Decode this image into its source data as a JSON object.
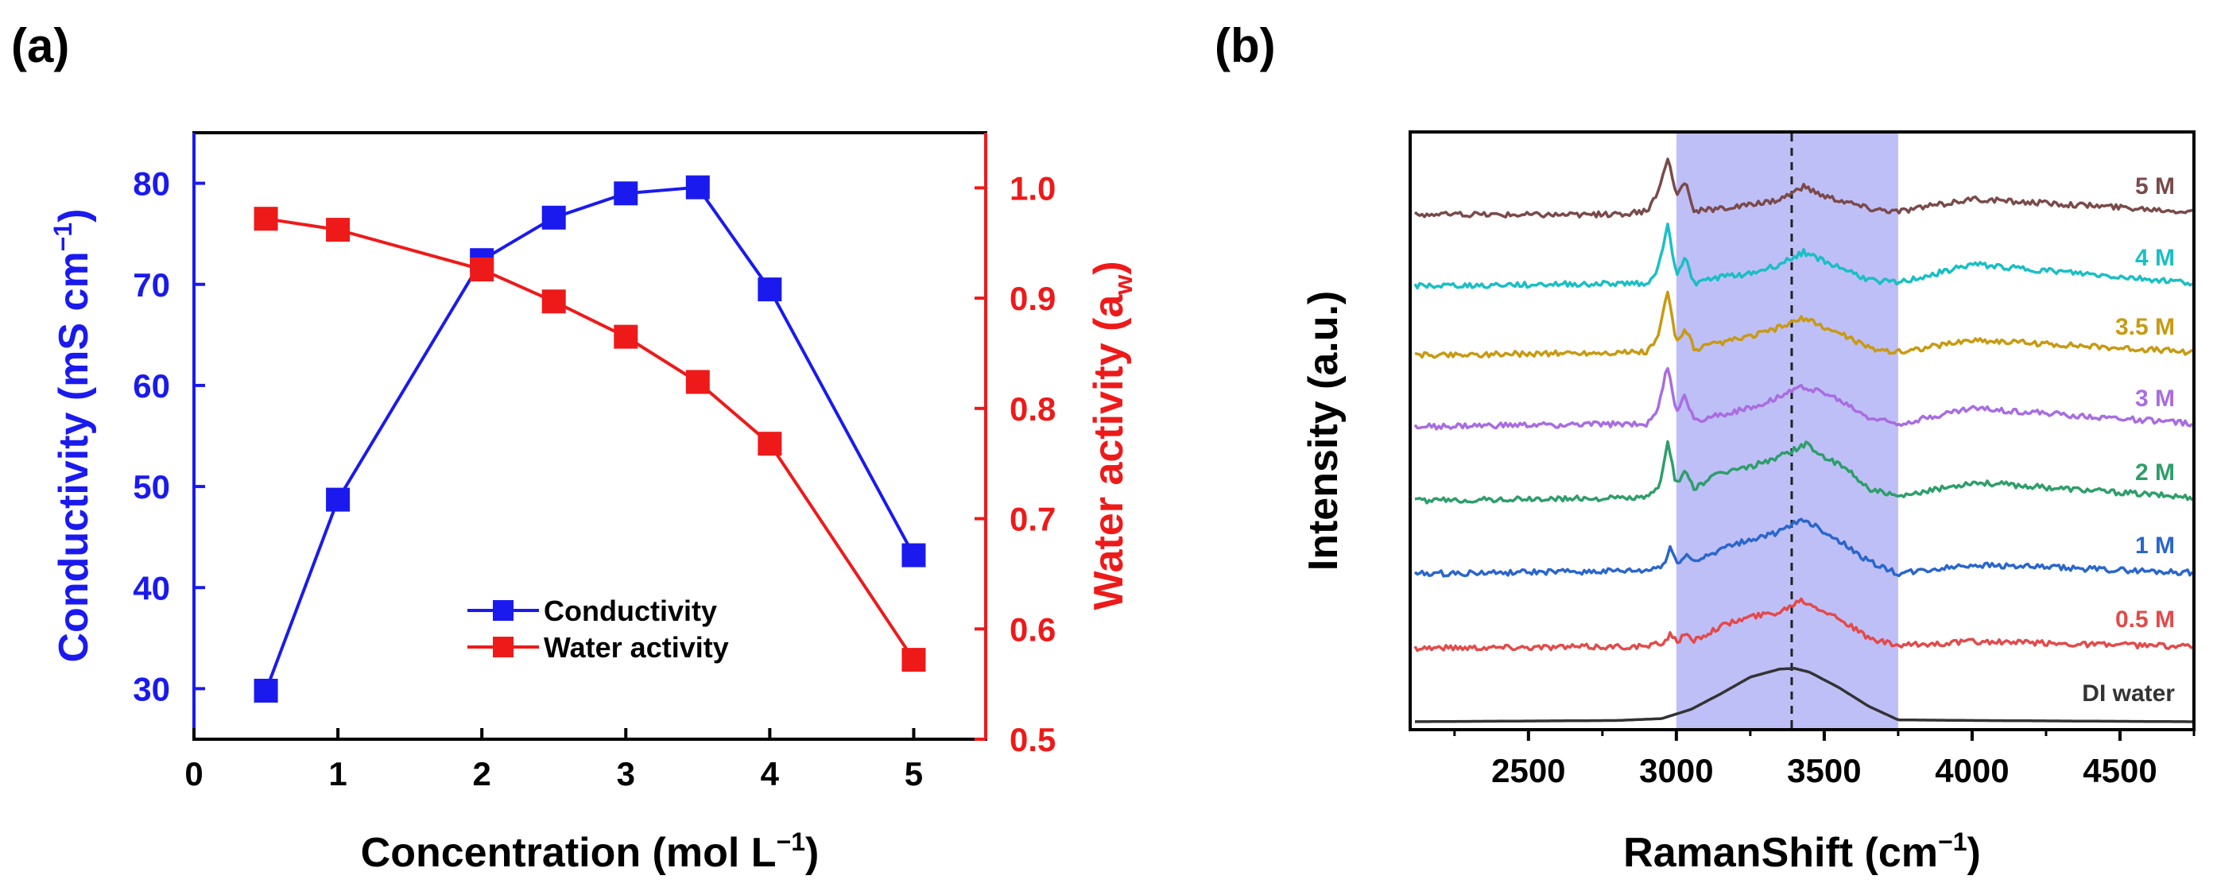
{
  "figure": {
    "panel_a_label": "(a)",
    "panel_b_label": "(b)"
  },
  "chart_data": [
    {
      "id": "a",
      "type": "line",
      "panel_label": "(a)",
      "xlabel": "Concentration (mol L",
      "xlabel_sup": "−1",
      "xlabel_end": ")",
      "ylabel_left": "Conductivity (mS cm",
      "ylabel_left_sup": "−1",
      "ylabel_left_end": ")",
      "ylabel_right": "Water activity (a",
      "ylabel_right_sub": "w",
      "ylabel_right_end": ")",
      "xlim": [
        0,
        5.5
      ],
      "ylim_left": [
        25,
        85
      ],
      "ylim_right": [
        0.5,
        1.05
      ],
      "xticks": [
        0,
        1,
        2,
        3,
        4,
        5
      ],
      "yticks_left": [
        30,
        40,
        50,
        60,
        70,
        80
      ],
      "yticks_right": [
        0.5,
        0.6,
        0.7,
        0.8,
        0.9,
        1.0
      ],
      "yticks_right_labels": [
        "0.5",
        "0.6",
        "0.7",
        "0.8",
        "0.9",
        "1.0"
      ],
      "legend_position": "lower-center",
      "series": [
        {
          "name": "Conductivity",
          "axis": "left",
          "color": "#1a1aee",
          "x": [
            0.5,
            1,
            2,
            2.5,
            3,
            3.5,
            4,
            5
          ],
          "y": [
            29.8,
            48.7,
            72.4,
            76.6,
            79.0,
            79.6,
            69.5,
            43.2
          ]
        },
        {
          "name": "Water activity",
          "axis": "right",
          "color": "#ee1a1a",
          "x": [
            0.5,
            1,
            2,
            2.5,
            3,
            3.5,
            4,
            5
          ],
          "y": [
            0.972,
            0.962,
            0.926,
            0.897,
            0.865,
            0.824,
            0.768,
            0.572
          ]
        }
      ]
    },
    {
      "id": "b",
      "type": "line",
      "panel_label": "(b)",
      "xlabel": "RamanShift (cm",
      "xlabel_sup": "−1",
      "xlabel_end": ")",
      "ylabel": "Intensity (a.u.)",
      "xlim": [
        2100,
        4750
      ],
      "xticks": [
        2500,
        3000,
        3500,
        4000,
        4500
      ],
      "shaded_region": [
        3000,
        3750
      ],
      "shade_color": "#b4b4f7",
      "dashed_line_x": 3390,
      "offset_step": 1,
      "series": [
        {
          "name": "DI water",
          "color": "#333333",
          "x": [
            2100,
            2800,
            2950,
            3050,
            3150,
            3250,
            3350,
            3400,
            3450,
            3550,
            3650,
            3750,
            4000,
            4750
          ],
          "y": [
            0.0,
            0.02,
            0.05,
            0.2,
            0.45,
            0.72,
            0.85,
            0.86,
            0.8,
            0.55,
            0.25,
            0.03,
            0.02,
            0.0
          ]
        },
        {
          "name": "0.5 M",
          "color": "#e34a4a",
          "x": [
            2100,
            2900,
            2960,
            2980,
            3000,
            3030,
            3060,
            3150,
            3250,
            3350,
            3420,
            3480,
            3560,
            3650,
            3750,
            4000,
            4750
          ],
          "y": [
            0.0,
            0.02,
            0.08,
            0.25,
            0.1,
            0.2,
            0.12,
            0.35,
            0.5,
            0.58,
            0.78,
            0.65,
            0.45,
            0.15,
            0.03,
            0.1,
            0.02
          ]
        },
        {
          "name": "1 M",
          "color": "#2a66cc",
          "x": [
            2100,
            2900,
            2960,
            2980,
            3000,
            3030,
            3060,
            3150,
            3250,
            3350,
            3430,
            3480,
            3560,
            3650,
            3750,
            4000,
            4750
          ],
          "y": [
            0.0,
            0.05,
            0.15,
            0.45,
            0.15,
            0.32,
            0.2,
            0.4,
            0.55,
            0.68,
            0.88,
            0.75,
            0.5,
            0.2,
            0.0,
            0.15,
            0.02
          ]
        },
        {
          "name": "2 M",
          "color": "#2e9e6a",
          "x": [
            2100,
            2900,
            2940,
            2970,
            3000,
            3030,
            3060,
            3150,
            3250,
            3350,
            3440,
            3500,
            3580,
            3650,
            3750,
            4000,
            4750
          ],
          "y": [
            0.0,
            0.05,
            0.2,
            0.95,
            0.25,
            0.5,
            0.2,
            0.45,
            0.55,
            0.72,
            0.92,
            0.7,
            0.5,
            0.2,
            0.05,
            0.3,
            0.05
          ]
        },
        {
          "name": "3 M",
          "color": "#a86de0",
          "x": [
            2100,
            2900,
            2940,
            2970,
            3000,
            3030,
            3060,
            3150,
            3250,
            3350,
            3430,
            3500,
            3580,
            3650,
            3750,
            4000,
            4750
          ],
          "y": [
            0.0,
            0.05,
            0.3,
            1.0,
            0.25,
            0.5,
            0.1,
            0.2,
            0.3,
            0.5,
            0.65,
            0.55,
            0.35,
            0.15,
            0.05,
            0.3,
            0.05
          ]
        },
        {
          "name": "3.5 M",
          "color": "#c89a12",
          "x": [
            2100,
            2900,
            2940,
            2970,
            3000,
            3030,
            3060,
            3150,
            3250,
            3350,
            3430,
            3500,
            3580,
            3650,
            3750,
            4000,
            4750
          ],
          "y": [
            0.0,
            0.05,
            0.3,
            1.05,
            0.2,
            0.45,
            0.1,
            0.2,
            0.3,
            0.45,
            0.6,
            0.45,
            0.3,
            0.12,
            0.05,
            0.25,
            0.05
          ]
        },
        {
          "name": "4 M",
          "color": "#1abfc4",
          "x": [
            2100,
            2900,
            2940,
            2970,
            3000,
            3030,
            3060,
            3150,
            3250,
            3350,
            3430,
            3500,
            3580,
            3650,
            3750,
            4000,
            4750
          ],
          "y": [
            0.0,
            0.05,
            0.3,
            1.0,
            0.2,
            0.45,
            0.05,
            0.15,
            0.2,
            0.35,
            0.55,
            0.4,
            0.25,
            0.1,
            0.05,
            0.35,
            0.05
          ]
        },
        {
          "name": "5 M",
          "color": "#7a4a4a",
          "x": [
            2100,
            2800,
            2900,
            2940,
            2970,
            3000,
            3030,
            3060,
            3150,
            3250,
            3350,
            3430,
            3500,
            3580,
            3650,
            3750,
            4000,
            4750
          ],
          "y": [
            0.0,
            0.0,
            0.05,
            0.35,
            0.95,
            0.3,
            0.55,
            0.05,
            0.1,
            0.15,
            0.25,
            0.45,
            0.3,
            0.2,
            0.1,
            0.05,
            0.25,
            0.05
          ]
        }
      ]
    }
  ]
}
